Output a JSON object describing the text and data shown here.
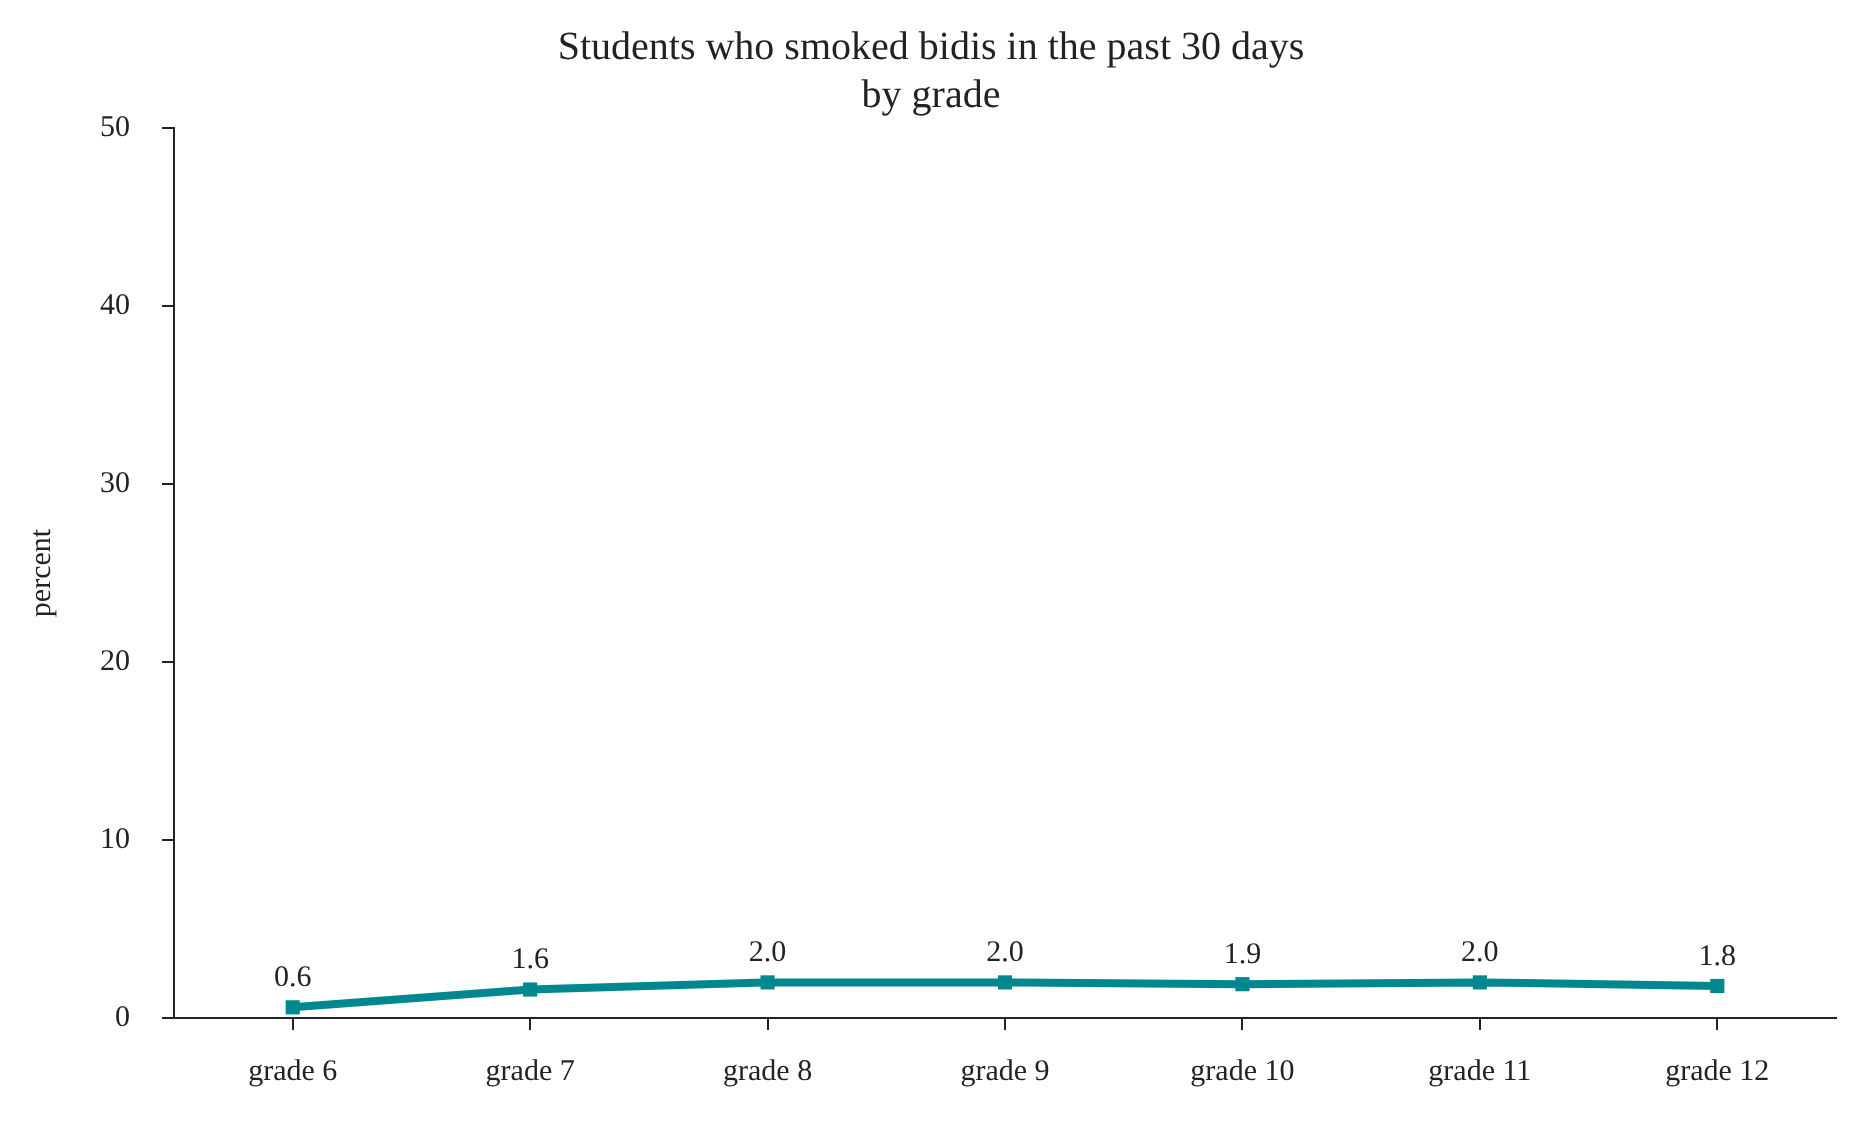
{
  "chart_data": {
    "type": "line",
    "title": "Students who smoked bidis in the past 30 days",
    "subtitle": "by grade",
    "ylabel": "percent",
    "categories": [
      "grade 6",
      "grade 7",
      "grade 8",
      "grade 9",
      "grade 10",
      "grade 11",
      "grade 12"
    ],
    "series": [
      {
        "color": "#00878f",
        "values": [
          0.6,
          1.6,
          2.0,
          2.0,
          1.9,
          2.0,
          1.8
        ],
        "value_labels": [
          "0.6",
          "1.6",
          "2.0",
          "2.0",
          "1.9",
          "2.0",
          "1.8"
        ]
      }
    ],
    "ylim": [
      0,
      50
    ],
    "yticks": [
      0,
      10,
      20,
      30,
      40,
      50
    ],
    "grid": false,
    "legend": false,
    "marker": "square",
    "line_style": "solid"
  }
}
